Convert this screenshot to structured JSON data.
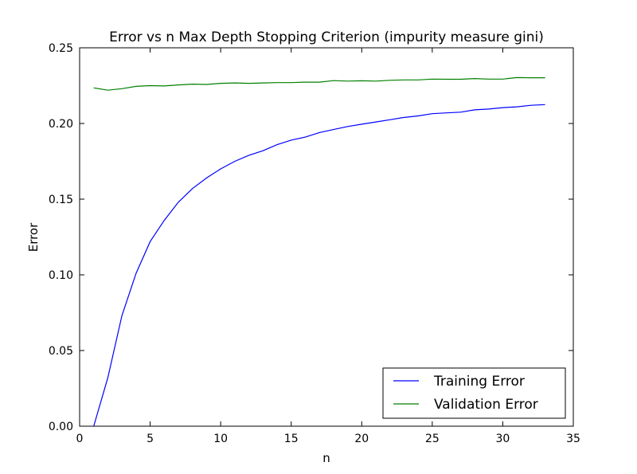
{
  "chart_data": {
    "type": "line",
    "title": "Error vs n Max Depth Stopping Criterion  (impurity measure gini)",
    "xlabel": "n",
    "ylabel": "Error",
    "xlim": [
      0,
      35
    ],
    "ylim": [
      0,
      0.25
    ],
    "xticks": [
      0,
      5,
      10,
      15,
      20,
      25,
      30,
      35
    ],
    "xtick_labels": [
      "0",
      "5",
      "10",
      "15",
      "20",
      "25",
      "30",
      "35"
    ],
    "yticks": [
      0,
      0.05,
      0.1,
      0.15,
      0.2,
      0.25
    ],
    "ytick_labels": [
      "0.00",
      "0.05",
      "0.10",
      "0.15",
      "0.20",
      "0.25"
    ],
    "grid": false,
    "legend_position": "bottom-right",
    "x": [
      1,
      2,
      3,
      4,
      5,
      6,
      7,
      8,
      9,
      10,
      11,
      12,
      13,
      14,
      15,
      16,
      17,
      18,
      19,
      20,
      21,
      22,
      23,
      24,
      25,
      26,
      27,
      28,
      29,
      30,
      31,
      32,
      33
    ],
    "series": [
      {
        "name": "Training Error",
        "color": "#0000ff",
        "values": [
          0.0,
          0.032,
          0.073,
          0.101,
          0.122,
          0.136,
          0.148,
          0.157,
          0.164,
          0.17,
          0.175,
          0.179,
          0.182,
          0.186,
          0.189,
          0.191,
          0.194,
          0.196,
          0.198,
          0.1995,
          0.201,
          0.2025,
          0.204,
          0.205,
          0.2065,
          0.207,
          0.2075,
          0.209,
          0.2095,
          0.2105,
          0.211,
          0.212,
          0.2125
        ]
      },
      {
        "name": "Validation Error",
        "color": "#008000",
        "values": [
          0.2235,
          0.222,
          0.223,
          0.2245,
          0.225,
          0.2248,
          0.2255,
          0.226,
          0.2258,
          0.2265,
          0.2268,
          0.2265,
          0.2268,
          0.227,
          0.227,
          0.2273,
          0.2273,
          0.2283,
          0.228,
          0.2282,
          0.228,
          0.2285,
          0.2288,
          0.2288,
          0.2293,
          0.2292,
          0.2292,
          0.2297,
          0.2293,
          0.2293,
          0.2303,
          0.2302,
          0.2302
        ]
      }
    ]
  }
}
